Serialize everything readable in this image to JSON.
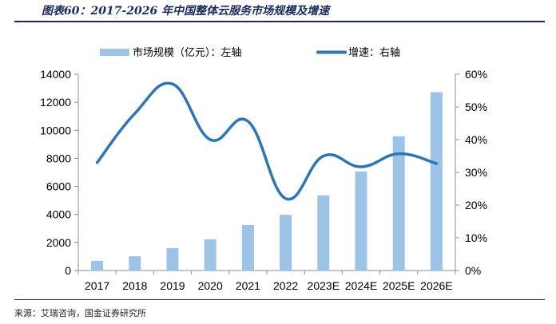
{
  "page": {
    "title": "图表60：2017-2026 年中国整体云服务市场规模及增速",
    "source": "来源：艾瑞咨询，国金证券研究所"
  },
  "colors": {
    "bar": "#9dc3e6",
    "line": "#2e75b6",
    "axis": "#8c8c8c",
    "text": "#000000",
    "title": "#1a2b5e"
  },
  "chart_data": {
    "type": "bar",
    "categories": [
      "2017",
      "2018",
      "2019",
      "2020",
      "2021",
      "2022",
      "2023E",
      "2024E",
      "2025E",
      "2026E"
    ],
    "series": [
      {
        "name": "市场规模（亿元）：左轴",
        "type": "bar",
        "axis": "left",
        "values": [
          692,
          1017,
          1604,
          2226,
          3242,
          3973,
          5361,
          7059,
          9579,
          12716
        ]
      },
      {
        "name": "增速：右轴",
        "type": "line",
        "axis": "right",
        "unit": "%",
        "values": [
          33,
          48,
          57,
          40,
          45.6,
          22,
          35,
          31.7,
          35.7,
          32.7
        ]
      }
    ],
    "y_left": {
      "min": 0,
      "max": 14000,
      "step": 2000,
      "ticks": [
        "0",
        "2000",
        "4000",
        "6000",
        "8000",
        "10000",
        "12000",
        "14000"
      ]
    },
    "y_right": {
      "min": 0,
      "max": 60,
      "step": 10,
      "ticks": [
        "0%",
        "10%",
        "20%",
        "30%",
        "40%",
        "50%",
        "60%"
      ]
    },
    "legend_position": "top",
    "grid": false
  }
}
